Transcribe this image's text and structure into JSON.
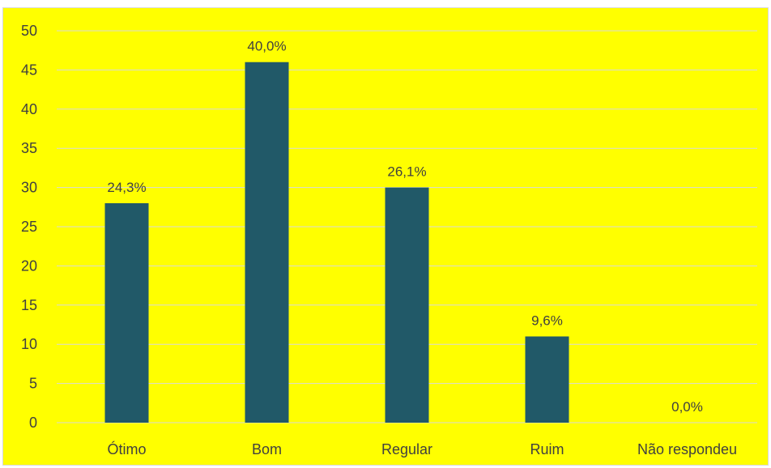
{
  "chart_data": {
    "type": "bar",
    "categories": [
      "Ótimo",
      "Bom",
      "Regular",
      "Ruim",
      "Não respondeu"
    ],
    "values": [
      28,
      46,
      30,
      11,
      0
    ],
    "data_labels": [
      "24,3%",
      "40,0%",
      "26,1%",
      "9,6%",
      "0,0%"
    ],
    "y_ticks": [
      "0",
      "5",
      "10",
      "15",
      "20",
      "25",
      "30",
      "35",
      "40",
      "45",
      "50"
    ],
    "ylim": [
      0,
      50
    ],
    "ytick_step": 5,
    "grid": true,
    "legend": "none",
    "colors": {
      "background": "#FFFF00",
      "bar": "#215968",
      "gridline": "#d9d9d9",
      "text": "#404040"
    }
  }
}
